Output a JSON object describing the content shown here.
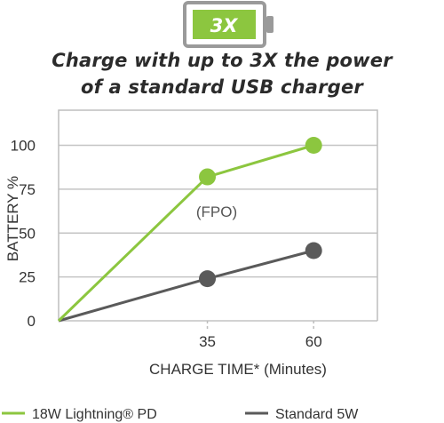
{
  "badge": {
    "label": "3X",
    "color": "#8cc63f",
    "outline_color": "#9a9a9a",
    "icon": "battery-icon"
  },
  "headline": {
    "line1": "Charge with up to 3X the power",
    "line2": "of a standard USB charger"
  },
  "chart_data": {
    "type": "line",
    "xlabel": "CHARGE TIME* (Minutes)",
    "ylabel": "BATTERY %",
    "x_ticks": [
      "35",
      "60"
    ],
    "y_ticks": [
      "0",
      "25",
      "50",
      "75",
      "100"
    ],
    "xlim": [
      0,
      75
    ],
    "ylim": [
      0,
      120
    ],
    "grid": true,
    "annotation": "(FPO)",
    "legend_position": "bottom",
    "series": [
      {
        "name": "18W Lightning® PD",
        "color": "#8cc63f",
        "points": [
          {
            "x": 0,
            "y": 0
          },
          {
            "x": 35,
            "y": 82
          },
          {
            "x": 60,
            "y": 100
          }
        ]
      },
      {
        "name": "Standard 5W",
        "color": "#5a5a5a",
        "points": [
          {
            "x": 0,
            "y": 0
          },
          {
            "x": 35,
            "y": 24
          },
          {
            "x": 60,
            "y": 40
          }
        ]
      }
    ]
  }
}
